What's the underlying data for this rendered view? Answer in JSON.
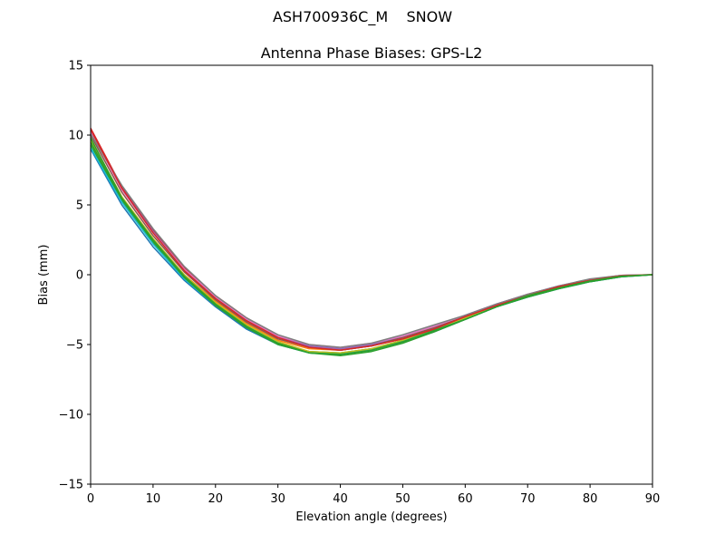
{
  "figure": {
    "suptitle": "ASH700936C_M    SNOW"
  },
  "chart_data": {
    "type": "line",
    "title": "Antenna Phase Biases: GPS-L2",
    "xlabel": "Elevation angle (degrees)",
    "ylabel": "Bias (mm)",
    "xlim": [
      0,
      90
    ],
    "ylim": [
      -15,
      15
    ],
    "xticks": [
      0,
      10,
      20,
      30,
      40,
      50,
      60,
      70,
      80,
      90
    ],
    "yticks": [
      -15,
      -10,
      -5,
      0,
      5,
      10,
      15
    ],
    "ytick_labels": [
      "−15",
      "−10",
      "−5",
      "0",
      "5",
      "10",
      "15"
    ],
    "grid": false,
    "x": [
      0,
      5,
      10,
      15,
      20,
      25,
      30,
      35,
      40,
      45,
      50,
      55,
      60,
      65,
      70,
      75,
      80,
      85,
      90
    ],
    "series": [
      {
        "color": "#1f77b4",
        "values": [
          9.0,
          5.0,
          2.0,
          -0.4,
          -2.3,
          -3.9,
          -5.0,
          -5.6,
          -5.7,
          -5.4,
          -4.8,
          -4.1,
          -3.2,
          -2.3,
          -1.6,
          -1.0,
          -0.5,
          -0.15,
          0
        ]
      },
      {
        "color": "#ff7f0e",
        "values": [
          9.6,
          5.5,
          2.5,
          0.0,
          -1.9,
          -3.5,
          -4.7,
          -5.3,
          -5.4,
          -5.1,
          -4.6,
          -3.9,
          -3.1,
          -2.2,
          -1.5,
          -0.9,
          -0.4,
          -0.1,
          0
        ]
      },
      {
        "color": "#2ca02c",
        "values": [
          9.3,
          5.3,
          2.3,
          -0.1,
          -2.1,
          -3.7,
          -4.9,
          -5.5,
          -5.6,
          -5.3,
          -4.7,
          -4.0,
          -3.1,
          -2.2,
          -1.5,
          -0.9,
          -0.45,
          -0.1,
          0
        ]
      },
      {
        "color": "#d62728",
        "values": [
          10.5,
          6.3,
          3.2,
          0.5,
          -1.5,
          -3.1,
          -4.4,
          -5.1,
          -5.3,
          -5.0,
          -4.5,
          -3.8,
          -3.0,
          -2.2,
          -1.4,
          -0.85,
          -0.35,
          -0.05,
          0
        ]
      },
      {
        "color": "#9467bd",
        "values": [
          10.2,
          6.2,
          3.1,
          0.4,
          -1.6,
          -3.2,
          -4.5,
          -5.1,
          -5.3,
          -5.0,
          -4.4,
          -3.7,
          -2.9,
          -2.1,
          -1.4,
          -0.8,
          -0.35,
          -0.05,
          0
        ]
      },
      {
        "color": "#8c564b",
        "values": [
          10.0,
          5.9,
          2.8,
          0.2,
          -1.8,
          -3.4,
          -4.6,
          -5.2,
          -5.4,
          -5.1,
          -4.5,
          -3.8,
          -3.0,
          -2.2,
          -1.5,
          -0.85,
          -0.4,
          -0.08,
          0
        ]
      },
      {
        "color": "#e377c2",
        "values": [
          10.3,
          6.1,
          3.0,
          0.4,
          -1.6,
          -3.2,
          -4.4,
          -5.0,
          -5.2,
          -4.9,
          -4.4,
          -3.7,
          -2.9,
          -2.1,
          -1.4,
          -0.8,
          -0.35,
          -0.05,
          0
        ]
      },
      {
        "color": "#7f7f7f",
        "values": [
          10.1,
          6.4,
          3.3,
          0.6,
          -1.5,
          -3.1,
          -4.3,
          -5.0,
          -5.2,
          -4.9,
          -4.3,
          -3.6,
          -2.9,
          -2.1,
          -1.4,
          -0.8,
          -0.3,
          -0.05,
          0
        ]
      },
      {
        "color": "#bcbd22",
        "values": [
          9.7,
          5.6,
          2.6,
          0.0,
          -2.0,
          -3.6,
          -4.8,
          -5.5,
          -5.6,
          -5.3,
          -4.7,
          -4.0,
          -3.1,
          -2.3,
          -1.5,
          -0.9,
          -0.45,
          -0.1,
          0
        ]
      },
      {
        "color": "#17becf",
        "values": [
          9.1,
          5.2,
          2.2,
          -0.3,
          -2.2,
          -3.8,
          -5.0,
          -5.6,
          -5.7,
          -5.4,
          -4.8,
          -4.0,
          -3.2,
          -2.3,
          -1.6,
          -1.0,
          -0.5,
          -0.15,
          0
        ]
      },
      {
        "color": "#2ca02c",
        "values": [
          9.5,
          5.4,
          2.4,
          -0.2,
          -2.2,
          -3.8,
          -5.0,
          -5.6,
          -5.8,
          -5.5,
          -4.9,
          -4.1,
          -3.2,
          -2.3,
          -1.6,
          -1.0,
          -0.5,
          -0.15,
          0
        ]
      },
      {
        "color": "#d62728",
        "values": [
          10.4,
          6.2,
          3.0,
          0.3,
          -1.7,
          -3.3,
          -4.5,
          -5.2,
          -5.4,
          -5.1,
          -4.6,
          -3.9,
          -3.0,
          -2.2,
          -1.5,
          -0.85,
          -0.4,
          -0.08,
          0
        ]
      },
      {
        "color": "#2ca02c",
        "values": [
          9.8,
          5.5,
          2.5,
          -0.1,
          -2.1,
          -3.7,
          -4.9,
          -5.6,
          -5.7,
          -5.4,
          -4.8,
          -4.0,
          -3.2,
          -2.3,
          -1.5,
          -0.95,
          -0.45,
          -0.12,
          0
        ]
      }
    ]
  }
}
